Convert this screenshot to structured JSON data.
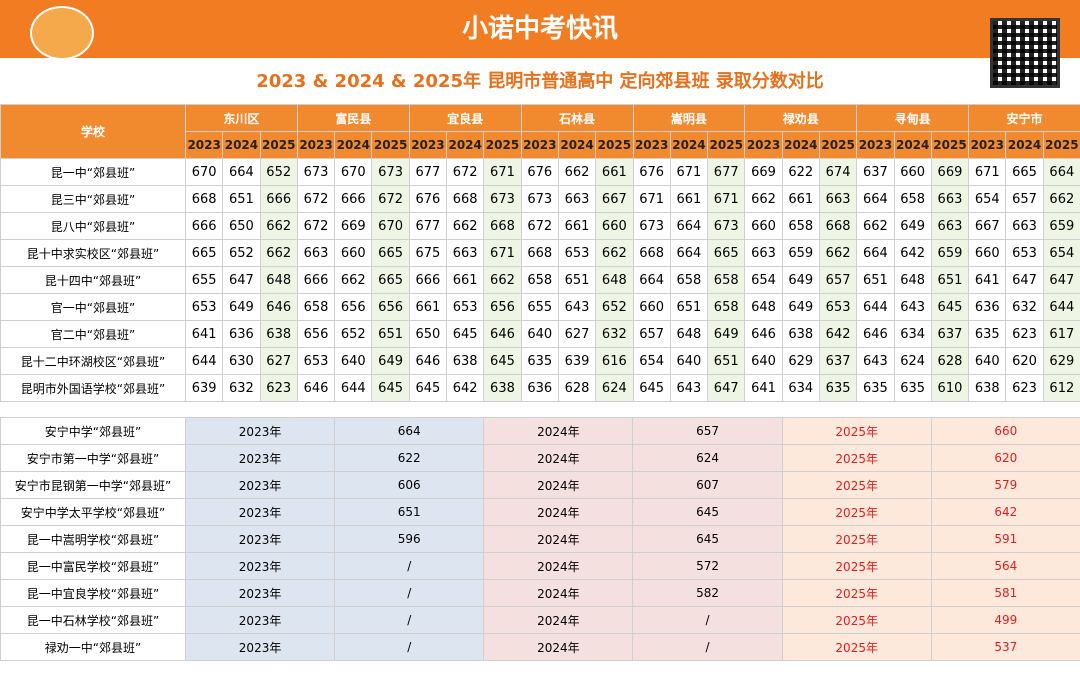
{
  "header": {
    "title": "小诺中考快讯",
    "subtitle": "2023 & 2024 & 2025年 昆明市普通高中  定向郊县班  录取分数对比"
  },
  "table": {
    "school_header": "学校",
    "districts": [
      "东川区",
      "富民县",
      "宜良县",
      "石林县",
      "嵩明县",
      "禄劝县",
      "寻甸县",
      "安宁市"
    ],
    "years": [
      2023,
      2024,
      2025
    ],
    "rows": [
      {
        "school": "昆一中“郊县班”",
        "scores": [
          670,
          664,
          652,
          673,
          670,
          673,
          677,
          672,
          671,
          676,
          662,
          661,
          676,
          671,
          677,
          669,
          622,
          674,
          637,
          660,
          669,
          671,
          665,
          664
        ]
      },
      {
        "school": "昆三中“郊县班”",
        "scores": [
          668,
          651,
          666,
          672,
          666,
          672,
          676,
          668,
          673,
          673,
          663,
          667,
          671,
          661,
          671,
          662,
          661,
          663,
          664,
          658,
          663,
          654,
          657,
          662
        ]
      },
      {
        "school": "昆八中“郊县班”",
        "scores": [
          666,
          650,
          662,
          672,
          669,
          670,
          677,
          662,
          668,
          672,
          661,
          660,
          673,
          664,
          673,
          660,
          658,
          668,
          662,
          649,
          663,
          667,
          663,
          659
        ]
      },
      {
        "school": "昆十中求实校区“郊县班”",
        "scores": [
          665,
          652,
          662,
          663,
          660,
          665,
          675,
          663,
          671,
          668,
          653,
          662,
          668,
          664,
          665,
          663,
          659,
          662,
          664,
          642,
          659,
          660,
          653,
          654
        ]
      },
      {
        "school": "昆十四中“郊县班”",
        "scores": [
          655,
          647,
          648,
          666,
          662,
          665,
          666,
          661,
          662,
          658,
          651,
          648,
          664,
          658,
          658,
          654,
          649,
          657,
          651,
          648,
          651,
          641,
          647,
          647
        ]
      },
      {
        "school": "官一中“郊县班”",
        "scores": [
          653,
          649,
          646,
          658,
          656,
          656,
          661,
          653,
          656,
          655,
          643,
          652,
          660,
          651,
          658,
          648,
          649,
          653,
          644,
          643,
          645,
          636,
          632,
          644
        ]
      },
      {
        "school": "官二中“郊县班”",
        "scores": [
          641,
          636,
          638,
          656,
          652,
          651,
          650,
          645,
          646,
          640,
          627,
          632,
          657,
          648,
          649,
          646,
          638,
          642,
          646,
          634,
          637,
          635,
          623,
          617
        ]
      },
      {
        "school": "昆十二中环湖校区“郊县班”",
        "scores": [
          644,
          630,
          627,
          653,
          640,
          649,
          646,
          638,
          645,
          635,
          639,
          616,
          654,
          640,
          651,
          640,
          629,
          637,
          643,
          624,
          628,
          640,
          620,
          629
        ]
      },
      {
        "school": "昆明市外国语学校“郊县班”",
        "scores": [
          639,
          632,
          623,
          646,
          644,
          645,
          645,
          642,
          638,
          636,
          628,
          624,
          645,
          643,
          647,
          641,
          634,
          635,
          635,
          635,
          610,
          638,
          623,
          612
        ]
      }
    ]
  },
  "table2": {
    "year_labels": [
      "2023年",
      "2024年",
      "2025年"
    ],
    "rows": [
      {
        "school": "安宁中学“郊县班”",
        "scores": [
          664,
          657,
          660
        ]
      },
      {
        "school": "安宁市第一中学“郊县班”",
        "scores": [
          622,
          624,
          620
        ]
      },
      {
        "school": "安宁市昆钢第一中学“郊县班”",
        "scores": [
          606,
          607,
          579
        ]
      },
      {
        "school": "安宁中学太平学校“郊县班”",
        "scores": [
          651,
          645,
          642
        ]
      },
      {
        "school": "昆一中嵩明学校“郊县班”",
        "scores": [
          596,
          645,
          591
        ]
      },
      {
        "school": "昆一中富民学校“郊县班”",
        "scores": [
          "/",
          572,
          564
        ]
      },
      {
        "school": "昆一中宜良学校“郊县班”",
        "scores": [
          "/",
          582,
          581
        ]
      },
      {
        "school": "昆一中石林学校“郊县班”",
        "scores": [
          "/",
          "/",
          499
        ]
      },
      {
        "school": "禄劝一中“郊县班”",
        "scores": [
          "/",
          "/",
          537
        ]
      }
    ]
  }
}
